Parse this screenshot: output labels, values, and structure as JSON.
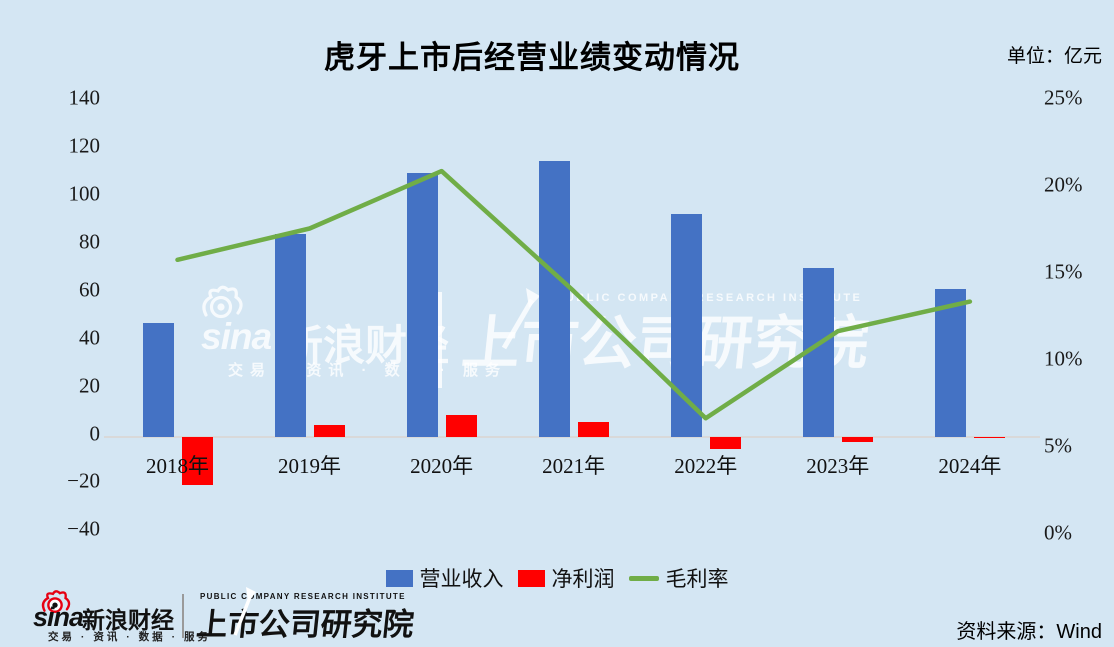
{
  "title": "虎牙上市后经营业绩变动情况",
  "unit_label": "单位：亿元",
  "source_label": "资料来源：Wind",
  "colors": {
    "background": "#d4e6f3",
    "revenue_bar": "#4472c4",
    "net_profit_bar": "#ff0000",
    "gross_margin_line": "#70ad47",
    "axis_line": "#d9d9d9"
  },
  "y_axis_left": {
    "ticks": [
      "140",
      "120",
      "100",
      "80",
      "60",
      "40",
      "20",
      "0",
      "−20",
      "−40"
    ]
  },
  "y_axis_right": {
    "ticks": [
      "25%",
      "20%",
      "15%",
      "10%",
      "5%",
      "0%"
    ]
  },
  "legend": {
    "revenue": "营业收入",
    "net_profit": "净利润",
    "gross_margin": "毛利率"
  },
  "chart_data": {
    "type": "combo-bar-line",
    "title": "虎牙上市后经营业绩变动情况",
    "categories": [
      "2018年",
      "2019年",
      "2020年",
      "2021年",
      "2022年",
      "2023年",
      "2024年"
    ],
    "series": [
      {
        "name": "营业收入",
        "type": "bar",
        "axis": "left",
        "unit": "亿元",
        "values": [
          47,
          84,
          109,
          114,
          92,
          70,
          61
        ]
      },
      {
        "name": "净利润",
        "type": "bar",
        "axis": "left",
        "unit": "亿元",
        "values": [
          -20,
          5,
          9,
          6,
          -5,
          -2,
          -0.5
        ]
      },
      {
        "name": "毛利率",
        "type": "line",
        "axis": "right",
        "unit": "%",
        "values": [
          15.7,
          17.5,
          20.8,
          13.9,
          6.6,
          11.6,
          13.3
        ]
      }
    ],
    "ylim_left": [
      -40,
      140
    ],
    "ylim_right": [
      0,
      25
    ],
    "grid": false,
    "legend_position": "bottom"
  },
  "watermark": {
    "sina_en": "sina",
    "sina_cn": "新浪财经",
    "sina_tagline": "交易 · 资讯 · 数据 · 服务",
    "institute_en": "PUBLIC COMPANY RESEARCH INSTITUTE",
    "institute_cn": "上市公司研究院"
  },
  "footer": {
    "sina_en": "sina",
    "sina_cn": "新浪财经",
    "sina_tagline": "交易 · 资讯 · 数据 · 服务",
    "institute_en": "PUBLIC COMPANY RESEARCH INSTITUTE",
    "institute_cn": "上市公司研究院"
  }
}
